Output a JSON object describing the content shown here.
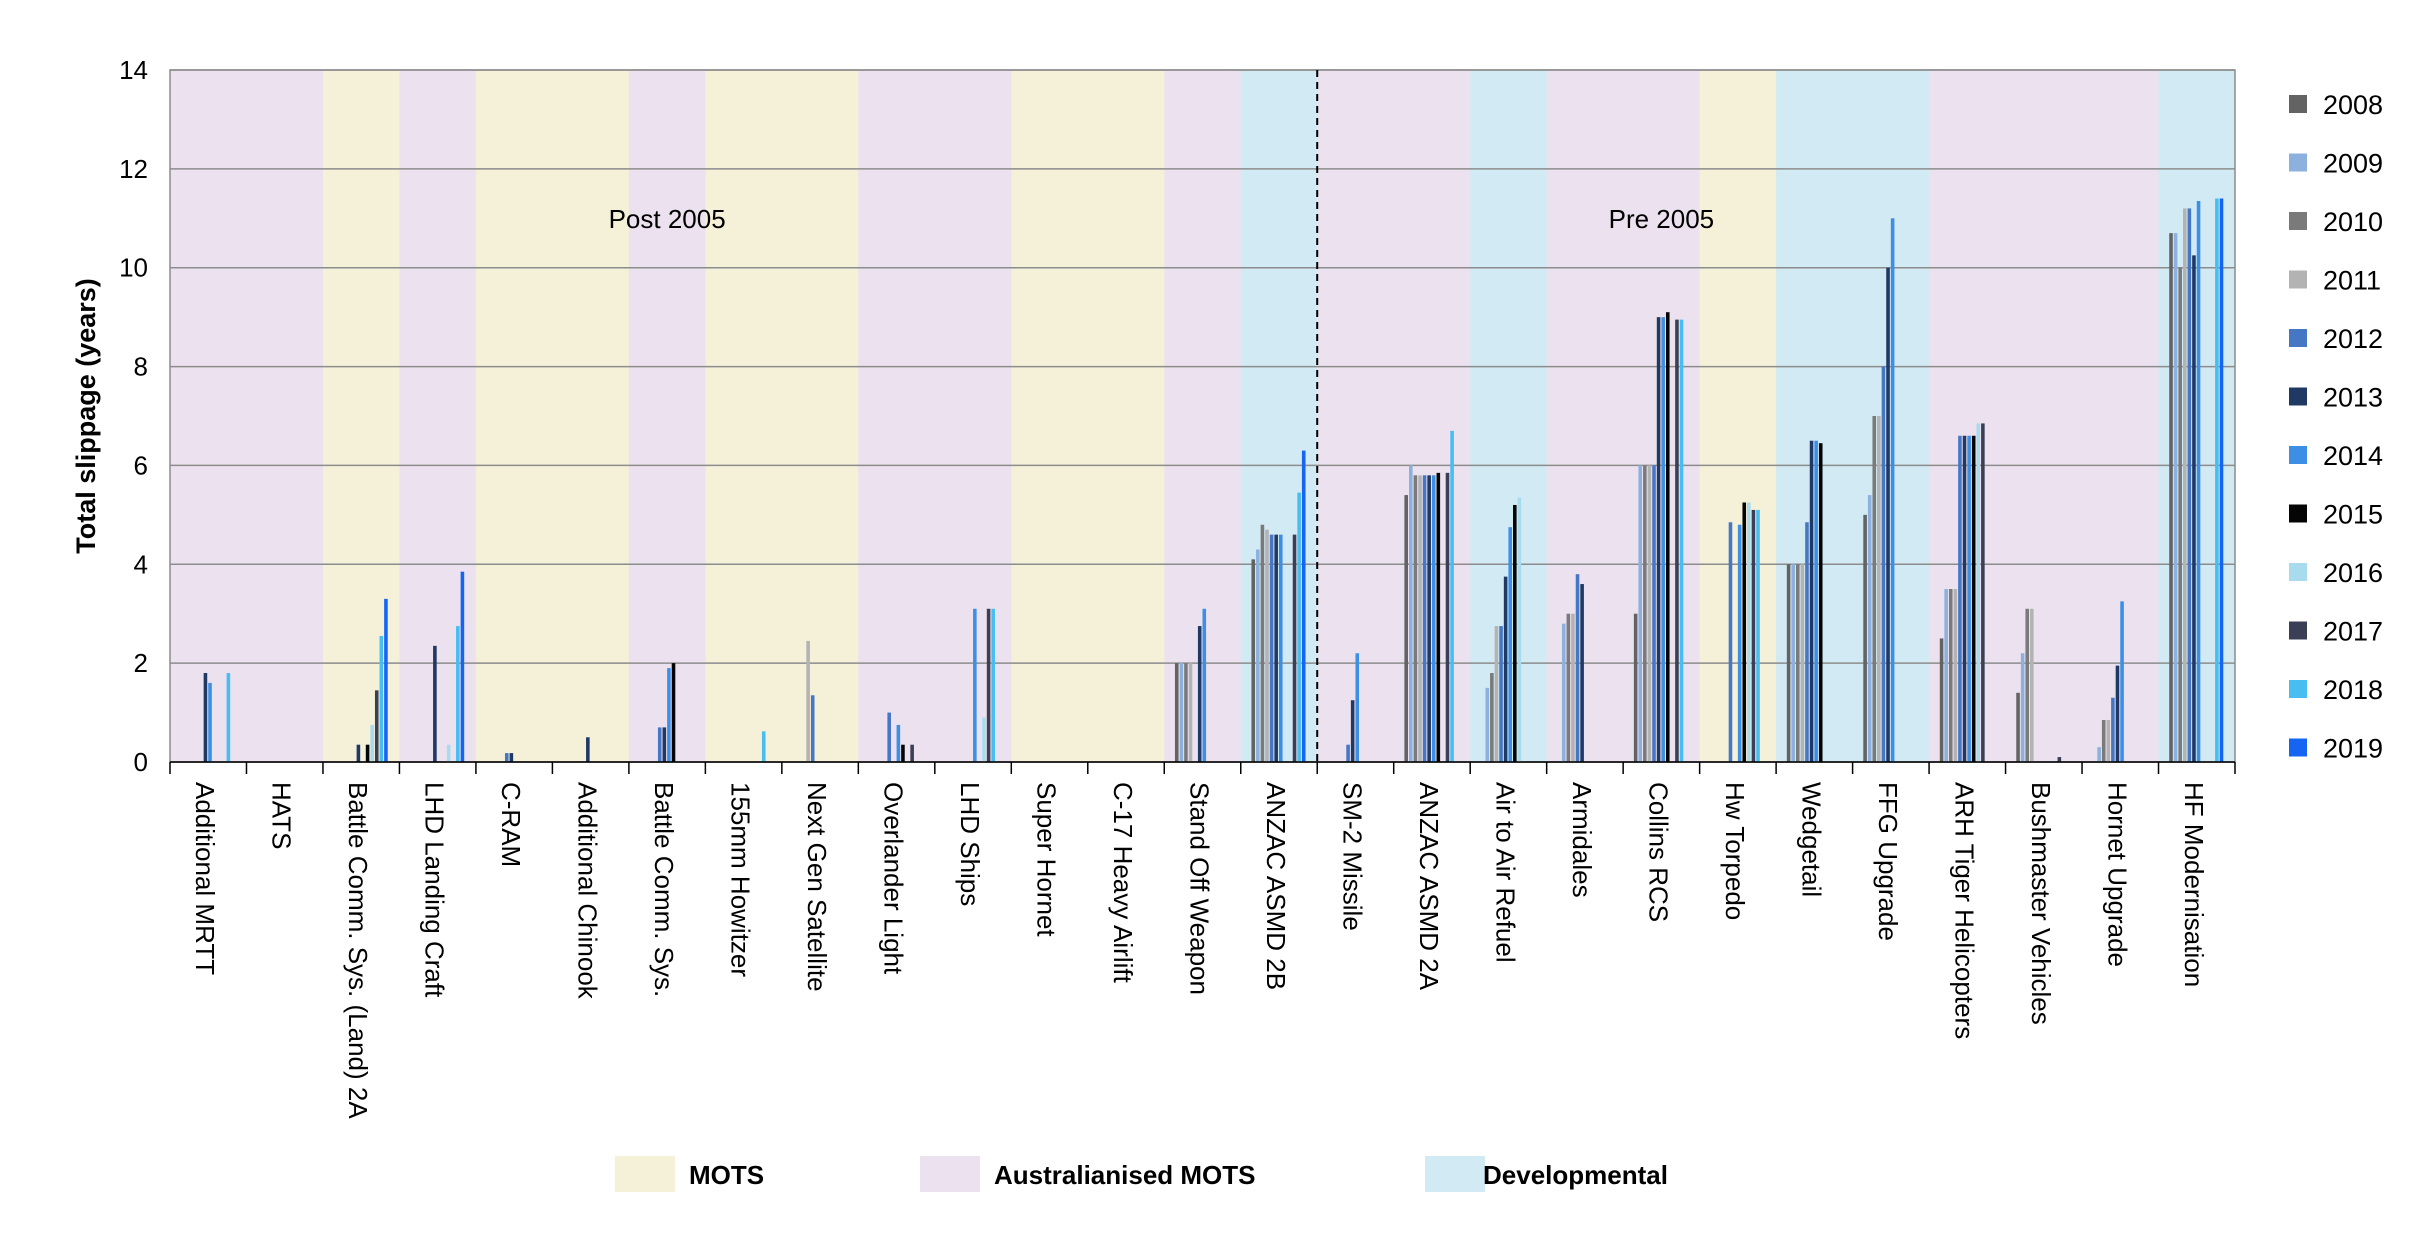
{
  "chart_data": {
    "type": "bar",
    "title": "",
    "ylabel": "Total slippage (years)",
    "xlabel": "",
    "ylim": [
      0,
      14
    ],
    "yticks": [
      0,
      2,
      4,
      6,
      8,
      10,
      12,
      14
    ],
    "grid": true,
    "legend_position": "right",
    "period_labels": [
      {
        "text": "Post 2005",
        "category_index": 6
      },
      {
        "text": "Pre 2005",
        "category_index": 19
      }
    ],
    "divider_after_index": 14,
    "categories": [
      "Additional MRTT",
      "HATS",
      "Battle Comm. Sys. (Land) 2A",
      "LHD Landing Craft",
      "C-RAM",
      "Additional Chinook",
      "Battle Comm. Sys.",
      "155mm Howitzer",
      "Next Gen Satellite",
      "Overlander Light",
      "LHD Ships",
      "Super Hornet",
      "C-17 Heavy Airlift",
      "Stand Off Weapon",
      "ANZAC ASMD 2B",
      "SM-2 Missile",
      "ANZAC ASMD 2A",
      "Air to Air Refuel",
      "Armidales",
      "Collins RCS",
      "Hw Torpedo",
      "Wedgetail",
      "FFG Upgrade",
      "ARH Tiger Helicopters",
      "Bushmaster Vehicles",
      "Hornet Upgrade",
      "HF Modernisation"
    ],
    "category_types": [
      "aus",
      "aus",
      "mots",
      "aus",
      "mots",
      "mots",
      "aus",
      "mots",
      "mots",
      "aus",
      "aus",
      "mots",
      "mots",
      "aus",
      "dev",
      "aus",
      "aus",
      "dev",
      "aus",
      "aus",
      "mots",
      "dev",
      "dev",
      "aus",
      "aus",
      "aus",
      "dev"
    ],
    "type_colors": {
      "mots": "#f5f0d8",
      "aus": "#ece2ef",
      "dev": "#d2eaf3"
    },
    "type_legend": [
      {
        "key": "mots",
        "label": "MOTS"
      },
      {
        "key": "aus",
        "label": "Australianised MOTS"
      },
      {
        "key": "dev",
        "label": "Developmental"
      }
    ],
    "series": [
      {
        "name": "2008",
        "color": "#636363",
        "values": [
          null,
          null,
          null,
          null,
          null,
          null,
          null,
          null,
          null,
          null,
          null,
          null,
          null,
          2.0,
          4.1,
          null,
          5.4,
          null,
          null,
          3.0,
          null,
          4.0,
          5.0,
          2.5,
          1.4,
          null,
          10.7
        ]
      },
      {
        "name": "2009",
        "color": "#8cb1de",
        "values": [
          null,
          null,
          null,
          null,
          null,
          null,
          null,
          null,
          null,
          null,
          null,
          null,
          null,
          2.0,
          4.3,
          null,
          6.0,
          1.5,
          2.8,
          6.0,
          null,
          4.0,
          5.4,
          3.5,
          2.2,
          0.3,
          10.7
        ]
      },
      {
        "name": "2010",
        "color": "#7a7a7a",
        "values": [
          null,
          null,
          null,
          null,
          null,
          null,
          null,
          null,
          null,
          null,
          null,
          null,
          null,
          2.0,
          4.8,
          null,
          5.8,
          1.8,
          3.0,
          6.0,
          null,
          4.0,
          7.0,
          3.5,
          3.1,
          0.85,
          10.0
        ]
      },
      {
        "name": "2011",
        "color": "#b3b3b3",
        "values": [
          null,
          null,
          null,
          null,
          null,
          null,
          null,
          null,
          2.45,
          null,
          null,
          null,
          null,
          2.0,
          4.7,
          null,
          5.8,
          2.75,
          3.0,
          6.0,
          null,
          4.0,
          7.0,
          3.5,
          3.1,
          0.85,
          11.2
        ]
      },
      {
        "name": "2012",
        "color": "#4577c4",
        "values": [
          null,
          null,
          null,
          null,
          0.18,
          null,
          0.7,
          null,
          1.35,
          1.0,
          null,
          null,
          null,
          null,
          4.6,
          0.35,
          5.8,
          2.75,
          3.8,
          6.0,
          4.85,
          4.85,
          8.0,
          6.6,
          null,
          1.3,
          11.2
        ]
      },
      {
        "name": "2013",
        "color": "#1f3864",
        "values": [
          1.8,
          null,
          0.35,
          2.35,
          0.18,
          0.5,
          0.7,
          null,
          null,
          null,
          null,
          null,
          null,
          2.75,
          4.6,
          1.25,
          5.8,
          3.75,
          3.6,
          9.0,
          null,
          6.5,
          10.0,
          6.6,
          null,
          1.95,
          10.25
        ]
      },
      {
        "name": "2014",
        "color": "#3d8fe6",
        "values": [
          1.6,
          null,
          null,
          null,
          null,
          null,
          1.9,
          null,
          null,
          0.75,
          3.1,
          null,
          null,
          3.1,
          4.6,
          2.2,
          5.8,
          4.75,
          null,
          9.0,
          4.8,
          6.5,
          11.0,
          6.6,
          null,
          3.25,
          11.35
        ]
      },
      {
        "name": "2015",
        "color": "#050505",
        "values": [
          null,
          null,
          0.35,
          null,
          null,
          null,
          2.0,
          null,
          null,
          0.35,
          null,
          null,
          null,
          null,
          null,
          null,
          5.85,
          5.2,
          null,
          9.1,
          5.25,
          6.45,
          null,
          6.6,
          null,
          null,
          null
        ]
      },
      {
        "name": "2016",
        "color": "#a9dbee",
        "values": [
          null,
          null,
          0.75,
          0.35,
          null,
          null,
          null,
          null,
          null,
          null,
          0.9,
          null,
          null,
          null,
          null,
          null,
          null,
          5.35,
          null,
          null,
          5.25,
          null,
          null,
          6.85,
          null,
          null,
          null
        ]
      },
      {
        "name": "2017",
        "color": "#3b3f55",
        "values": [
          null,
          null,
          1.45,
          null,
          null,
          null,
          null,
          null,
          null,
          0.35,
          3.1,
          null,
          null,
          null,
          4.6,
          null,
          5.85,
          null,
          null,
          8.95,
          5.1,
          null,
          null,
          6.85,
          0.1,
          null,
          null
        ]
      },
      {
        "name": "2018",
        "color": "#47bdf2",
        "values": [
          1.8,
          null,
          2.55,
          2.75,
          null,
          null,
          null,
          0.62,
          null,
          null,
          3.1,
          null,
          null,
          null,
          5.45,
          null,
          6.7,
          null,
          null,
          8.95,
          5.1,
          null,
          null,
          null,
          null,
          null,
          11.4
        ]
      },
      {
        "name": "2019",
        "color": "#1565f2",
        "values": [
          null,
          null,
          3.3,
          3.85,
          null,
          null,
          null,
          null,
          null,
          null,
          null,
          null,
          null,
          null,
          6.3,
          null,
          null,
          null,
          null,
          null,
          null,
          null,
          null,
          null,
          null,
          null,
          11.4
        ]
      }
    ]
  }
}
